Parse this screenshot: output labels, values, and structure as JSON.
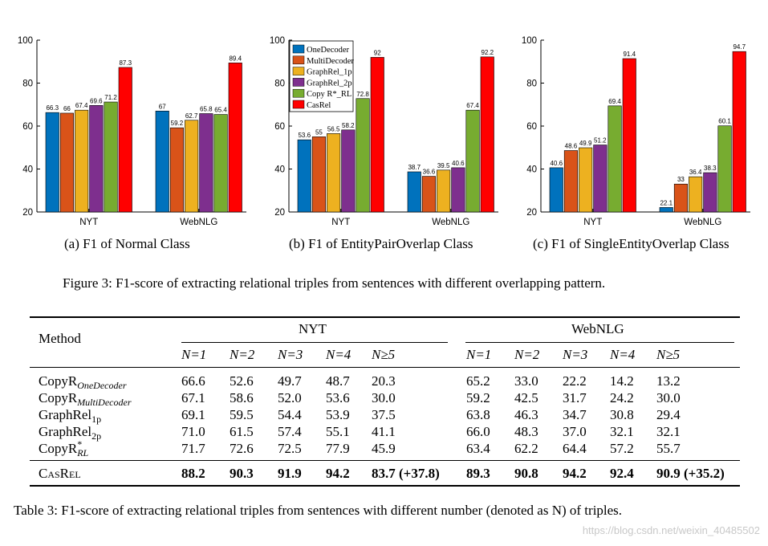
{
  "figure": {
    "legend": [
      {
        "label": "OneDecoder",
        "color": "#0072BD"
      },
      {
        "label": "MultiDecoder",
        "color": "#D95319"
      },
      {
        "label": "GraphRel_1p",
        "color": "#EDB120"
      },
      {
        "label": "GraphRel_2p",
        "color": "#7E2F8E"
      },
      {
        "label": "Copy R*_RL",
        "color": "#77AC30"
      },
      {
        "label": "CasRel",
        "color": "#FF0000"
      }
    ],
    "subcaptions": [
      "(a)  F1 of Normal Class",
      "(b)  F1 of EntityPairOverlap Class",
      "(c)  F1 of SingleEntityOverlap Class"
    ],
    "caption": "Figure 3: F1-score of extracting relational triples from sentences with different overlapping pattern."
  },
  "chart_data": [
    {
      "type": "bar",
      "title": "F1 of Normal Class",
      "categories": [
        "NYT",
        "WebNLG"
      ],
      "ylim": [
        20,
        100
      ],
      "yticks": [
        20,
        40,
        60,
        80,
        100
      ],
      "series": [
        {
          "name": "OneDecoder",
          "values": [
            66.3,
            67
          ]
        },
        {
          "name": "MultiDecoder",
          "values": [
            66,
            59.2
          ]
        },
        {
          "name": "GraphRel_1p",
          "values": [
            67.4,
            62.7
          ]
        },
        {
          "name": "GraphRel_2p",
          "values": [
            69.6,
            65.8
          ]
        },
        {
          "name": "CopyR*_RL",
          "values": [
            71.2,
            65.4
          ]
        },
        {
          "name": "CasRel",
          "values": [
            87.3,
            89.4
          ]
        }
      ]
    },
    {
      "type": "bar",
      "title": "F1 of EntityPairOverlap Class",
      "categories": [
        "NYT",
        "WebNLG"
      ],
      "ylim": [
        20,
        100
      ],
      "yticks": [
        20,
        40,
        60,
        80,
        100
      ],
      "series": [
        {
          "name": "OneDecoder",
          "values": [
            53.6,
            38.7
          ]
        },
        {
          "name": "MultiDecoder",
          "values": [
            55,
            36.6
          ]
        },
        {
          "name": "GraphRel_1p",
          "values": [
            56.5,
            39.5
          ]
        },
        {
          "name": "GraphRel_2p",
          "values": [
            58.2,
            40.6
          ]
        },
        {
          "name": "CopyR*_RL",
          "values": [
            72.8,
            67.4
          ]
        },
        {
          "name": "CasRel",
          "values": [
            92,
            92.2
          ]
        }
      ]
    },
    {
      "type": "bar",
      "title": "F1 of SingleEntityOverlap Class",
      "categories": [
        "NYT",
        "WebNLG"
      ],
      "ylim": [
        20,
        100
      ],
      "yticks": [
        20,
        40,
        60,
        80,
        100
      ],
      "series": [
        {
          "name": "OneDecoder",
          "values": [
            40.6,
            22.1
          ]
        },
        {
          "name": "MultiDecoder",
          "values": [
            48.6,
            33
          ]
        },
        {
          "name": "GraphRel_1p",
          "values": [
            49.9,
            36.4
          ]
        },
        {
          "name": "GraphRel_2p",
          "values": [
            51.2,
            38.3
          ]
        },
        {
          "name": "CopyR*_RL",
          "values": [
            69.4,
            60.1
          ]
        },
        {
          "name": "CasRel",
          "values": [
            91.4,
            94.7
          ]
        }
      ]
    }
  ],
  "table": {
    "method_header": "Method",
    "group_headers": [
      "NYT",
      "WebNLG"
    ],
    "n_headers": [
      "N=1",
      "N=2",
      "N=3",
      "N=4",
      "N≥5",
      "N=1",
      "N=2",
      "N=3",
      "N=4",
      "N≥5"
    ],
    "rows": [
      {
        "base": "CopyR",
        "sub": "OneDecoder",
        "sup": "",
        "values": [
          "66.6",
          "52.6",
          "49.7",
          "48.7",
          "20.3",
          "65.2",
          "33.0",
          "22.2",
          "14.2",
          "13.2"
        ]
      },
      {
        "base": "CopyR",
        "sub": "MultiDecoder",
        "sup": "",
        "values": [
          "67.1",
          "58.6",
          "52.0",
          "53.6",
          "30.0",
          "59.2",
          "42.5",
          "31.7",
          "24.2",
          "30.0"
        ]
      },
      {
        "base": "GraphRel",
        "sub": "1p",
        "sup": "",
        "values": [
          "69.1",
          "59.5",
          "54.4",
          "53.9",
          "37.5",
          "63.8",
          "46.3",
          "34.7",
          "30.8",
          "29.4"
        ]
      },
      {
        "base": "GraphRel",
        "sub": "2p",
        "sup": "",
        "values": [
          "71.0",
          "61.5",
          "57.4",
          "55.1",
          "41.1",
          "66.0",
          "48.3",
          "37.0",
          "32.1",
          "32.1"
        ]
      },
      {
        "base": "CopyR",
        "sub": "RL",
        "sup": "*",
        "values": [
          "71.7",
          "72.6",
          "72.5",
          "77.9",
          "45.9",
          "63.4",
          "62.2",
          "64.4",
          "57.2",
          "55.7"
        ]
      }
    ],
    "best_row": {
      "label": "CasRel",
      "values": [
        "88.2",
        "90.3",
        "91.9",
        "94.2",
        "83.7 (+37.8)",
        "89.3",
        "90.8",
        "94.2",
        "92.4",
        "90.9 (+35.2)"
      ]
    },
    "caption": "Table 3: F1-score of extracting relational triples from sentences with different number (denoted as N) of triples."
  },
  "watermark": "https://blog.csdn.net/weixin_40485502"
}
